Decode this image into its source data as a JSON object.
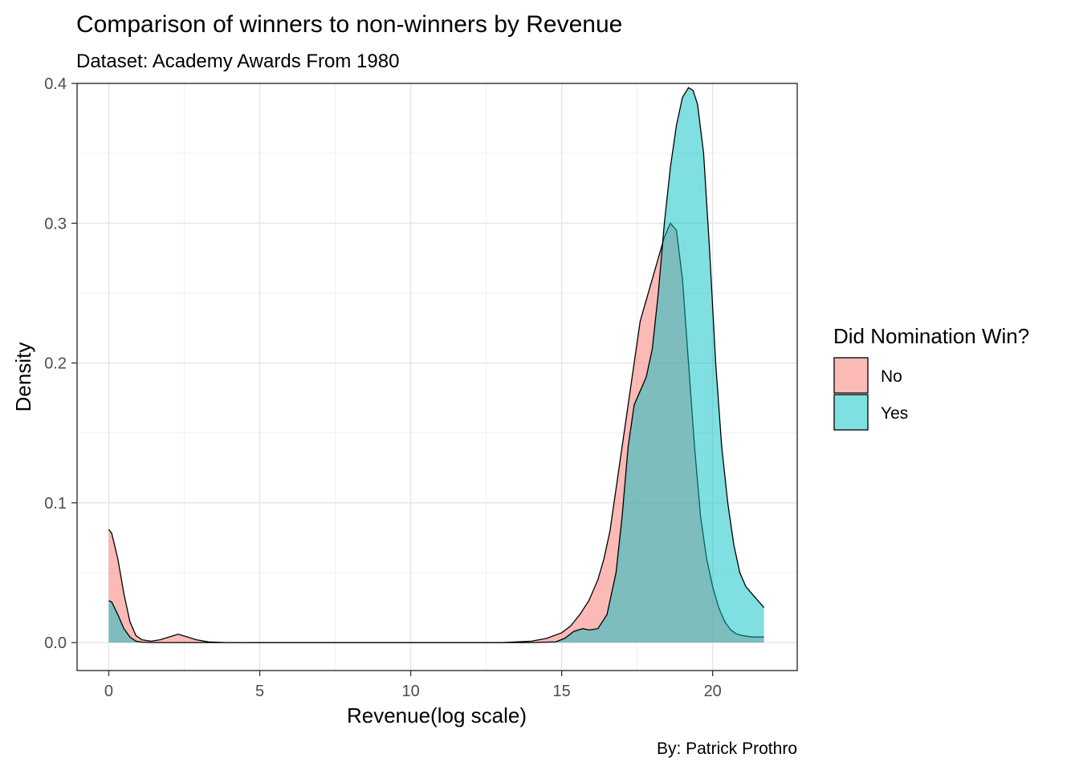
{
  "chart_data": {
    "type": "area",
    "title": "Comparison of winners to non-winners by Revenue",
    "subtitle": "Dataset: Academy Awards From 1980",
    "xlabel": "Revenue(log scale)",
    "ylabel": "Density",
    "caption": "By: Patrick Prothro",
    "xlim": [
      -1.05,
      22.8
    ],
    "ylim": [
      -0.02,
      0.4
    ],
    "x_ticks": [
      0,
      5,
      10,
      15,
      20
    ],
    "x_tick_labels": [
      "0",
      "5",
      "10",
      "15",
      "20"
    ],
    "y_ticks": [
      0.0,
      0.1,
      0.2,
      0.3,
      0.4
    ],
    "y_tick_labels": [
      "0.0",
      "0.1",
      "0.2",
      "0.3",
      "0.4"
    ],
    "grid": true,
    "legend": {
      "title": "Did Nomination Win?",
      "position": "right"
    },
    "series": [
      {
        "name": "No",
        "color": "#F8766D",
        "x": [
          0,
          0.1,
          0.3,
          0.5,
          0.7,
          0.9,
          1.1,
          1.4,
          1.7,
          2.0,
          2.3,
          2.6,
          2.9,
          3.3,
          3.8,
          5,
          8,
          10,
          12,
          13,
          13.5,
          14,
          14.5,
          15,
          15.3,
          15.6,
          15.9,
          16.2,
          16.4,
          16.6,
          16.8,
          17.0,
          17.2,
          17.4,
          17.6,
          17.8,
          18.0,
          18.2,
          18.4,
          18.6,
          18.8,
          19.0,
          19.2,
          19.4,
          19.6,
          19.8,
          20.0,
          20.2,
          20.4,
          20.6,
          20.8,
          21.0,
          21.3,
          21.5,
          21.7
        ],
        "values": [
          0.081,
          0.078,
          0.06,
          0.035,
          0.015,
          0.005,
          0.002,
          0.001,
          0.002,
          0.004,
          0.006,
          0.004,
          0.002,
          0.0005,
          0.0001,
          0.0,
          0.0,
          0.0,
          0.0,
          0.0,
          0.0005,
          0.001,
          0.003,
          0.007,
          0.012,
          0.02,
          0.03,
          0.045,
          0.06,
          0.08,
          0.11,
          0.14,
          0.17,
          0.2,
          0.23,
          0.245,
          0.26,
          0.275,
          0.29,
          0.3,
          0.295,
          0.26,
          0.2,
          0.14,
          0.09,
          0.06,
          0.04,
          0.025,
          0.015,
          0.009,
          0.006,
          0.005,
          0.004,
          0.004,
          0.004
        ]
      },
      {
        "name": "Yes",
        "color": "#00BFC4",
        "x": [
          0,
          0.1,
          0.3,
          0.5,
          0.7,
          0.9,
          1.1,
          1.4,
          1.7,
          2.0,
          3,
          5,
          8,
          10,
          12,
          14,
          14.8,
          15.1,
          15.4,
          15.7,
          15.9,
          16.2,
          16.5,
          16.8,
          17.0,
          17.2,
          17.4,
          17.6,
          17.8,
          18.0,
          18.2,
          18.4,
          18.6,
          18.8,
          19.0,
          19.2,
          19.35,
          19.5,
          19.7,
          19.9,
          20.1,
          20.3,
          20.5,
          20.7,
          20.9,
          21.1,
          21.3,
          21.5,
          21.7
        ],
        "values": [
          0.03,
          0.029,
          0.02,
          0.01,
          0.004,
          0.001,
          0.0003,
          0.0001,
          0.0,
          0.0,
          0.0,
          0.0,
          0.0,
          0.0,
          0.0,
          0.0,
          0.0005,
          0.003,
          0.008,
          0.01,
          0.009,
          0.01,
          0.02,
          0.05,
          0.09,
          0.14,
          0.17,
          0.18,
          0.19,
          0.21,
          0.25,
          0.3,
          0.34,
          0.37,
          0.39,
          0.397,
          0.395,
          0.385,
          0.35,
          0.28,
          0.2,
          0.14,
          0.1,
          0.07,
          0.05,
          0.04,
          0.035,
          0.03,
          0.025
        ]
      }
    ]
  }
}
